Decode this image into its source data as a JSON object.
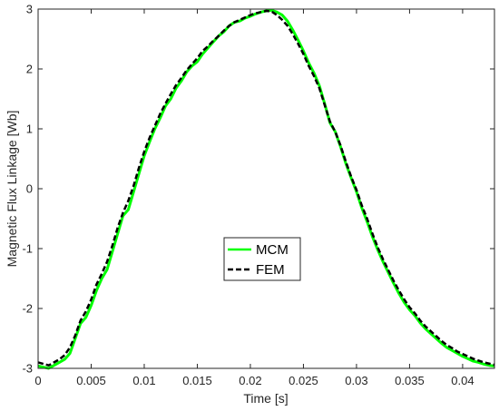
{
  "chart_data": {
    "type": "line",
    "title": "",
    "xlabel": "Time [s]",
    "ylabel": "Magnetic Flux Linkage [Wb]",
    "xlim": [
      0,
      0.043
    ],
    "ylim": [
      -3,
      3
    ],
    "x_ticks": [
      0,
      0.005,
      0.01,
      0.015,
      0.02,
      0.025,
      0.03,
      0.035,
      0.04
    ],
    "x_tick_labels": [
      "0",
      "0.005",
      "0.01",
      "0.015",
      "0.02",
      "0.025",
      "0.03",
      "0.035",
      "0.04"
    ],
    "y_ticks": [
      -3,
      -2,
      -1,
      0,
      1,
      2,
      3
    ],
    "y_tick_labels": [
      "-3",
      "-2",
      "-1",
      "0",
      "1",
      "2",
      "3"
    ],
    "grid": false,
    "legend_position": "center",
    "series": [
      {
        "name": "MCM",
        "color": "#00ff00",
        "style": "solid",
        "x": [
          0,
          0.001,
          0.0015,
          0.002,
          0.0025,
          0.003,
          0.0035,
          0.004,
          0.0045,
          0.005,
          0.0055,
          0.006,
          0.0065,
          0.007,
          0.0075,
          0.008,
          0.0085,
          0.009,
          0.0095,
          0.01,
          0.0105,
          0.011,
          0.0115,
          0.012,
          0.0125,
          0.013,
          0.0135,
          0.014,
          0.0145,
          0.015,
          0.0155,
          0.016,
          0.0165,
          0.017,
          0.0175,
          0.018,
          0.0185,
          0.019,
          0.0195,
          0.02,
          0.0205,
          0.021,
          0.0215,
          0.022,
          0.0225,
          0.023,
          0.0235,
          0.024,
          0.0245,
          0.025,
          0.0255,
          0.026,
          0.0265,
          0.027,
          0.0275,
          0.028,
          0.0285,
          0.029,
          0.0295,
          0.03,
          0.0305,
          0.031,
          0.0315,
          0.032,
          0.0325,
          0.033,
          0.0335,
          0.034,
          0.0345,
          0.035,
          0.0355,
          0.036,
          0.0365,
          0.037,
          0.0375,
          0.038,
          0.0385,
          0.039,
          0.0395,
          0.04,
          0.0405,
          0.041,
          0.0415,
          0.042,
          0.0425,
          0.043
        ],
        "y": [
          -2.96,
          -3.0,
          -2.95,
          -2.9,
          -2.85,
          -2.75,
          -2.5,
          -2.25,
          -2.15,
          -1.95,
          -1.7,
          -1.5,
          -1.35,
          -1.05,
          -0.75,
          -0.45,
          -0.35,
          -0.05,
          0.25,
          0.55,
          0.78,
          1.0,
          1.18,
          1.38,
          1.5,
          1.68,
          1.8,
          1.95,
          2.05,
          2.12,
          2.25,
          2.35,
          2.45,
          2.55,
          2.62,
          2.72,
          2.78,
          2.8,
          2.85,
          2.88,
          2.92,
          2.95,
          2.97,
          2.98,
          2.95,
          2.9,
          2.8,
          2.65,
          2.48,
          2.3,
          2.1,
          1.93,
          1.72,
          1.42,
          1.1,
          0.95,
          0.7,
          0.42,
          0.18,
          -0.05,
          -0.32,
          -0.55,
          -0.8,
          -1.02,
          -1.22,
          -1.4,
          -1.58,
          -1.75,
          -1.9,
          -2.02,
          -2.12,
          -2.24,
          -2.34,
          -2.42,
          -2.5,
          -2.58,
          -2.65,
          -2.7,
          -2.75,
          -2.8,
          -2.84,
          -2.88,
          -2.9,
          -2.93,
          -2.95,
          -2.96
        ]
      },
      {
        "name": "FEM",
        "color": "#000000",
        "style": "dashed",
        "x": [
          0,
          0.001,
          0.0015,
          0.002,
          0.0025,
          0.003,
          0.0035,
          0.004,
          0.0045,
          0.005,
          0.0055,
          0.006,
          0.0065,
          0.007,
          0.0075,
          0.008,
          0.0085,
          0.009,
          0.0095,
          0.01,
          0.0105,
          0.011,
          0.0115,
          0.012,
          0.0125,
          0.013,
          0.0135,
          0.014,
          0.0145,
          0.015,
          0.0155,
          0.016,
          0.0165,
          0.017,
          0.0175,
          0.018,
          0.0185,
          0.019,
          0.0195,
          0.02,
          0.0205,
          0.021,
          0.0215,
          0.022,
          0.0225,
          0.023,
          0.0235,
          0.024,
          0.0245,
          0.025,
          0.0255,
          0.026,
          0.0265,
          0.027,
          0.0275,
          0.028,
          0.0285,
          0.029,
          0.0295,
          0.03,
          0.0305,
          0.031,
          0.0315,
          0.032,
          0.0325,
          0.033,
          0.0335,
          0.034,
          0.0345,
          0.035,
          0.0355,
          0.036,
          0.0365,
          0.037,
          0.0375,
          0.038,
          0.0385,
          0.039,
          0.0395,
          0.04,
          0.0405,
          0.041,
          0.0415,
          0.042,
          0.0425,
          0.043
        ],
        "y": [
          -2.9,
          -2.95,
          -2.9,
          -2.85,
          -2.78,
          -2.65,
          -2.45,
          -2.2,
          -2.05,
          -1.85,
          -1.6,
          -1.42,
          -1.22,
          -0.95,
          -0.65,
          -0.4,
          -0.2,
          0.05,
          0.35,
          0.62,
          0.85,
          1.05,
          1.25,
          1.42,
          1.58,
          1.73,
          1.85,
          1.98,
          2.08,
          2.18,
          2.3,
          2.38,
          2.47,
          2.55,
          2.64,
          2.72,
          2.78,
          2.82,
          2.86,
          2.9,
          2.93,
          2.95,
          2.97,
          2.96,
          2.9,
          2.82,
          2.72,
          2.58,
          2.42,
          2.25,
          2.05,
          1.88,
          1.68,
          1.4,
          1.12,
          0.95,
          0.72,
          0.45,
          0.2,
          -0.02,
          -0.28,
          -0.5,
          -0.75,
          -0.98,
          -1.18,
          -1.36,
          -1.54,
          -1.7,
          -1.85,
          -1.98,
          -2.08,
          -2.2,
          -2.3,
          -2.38,
          -2.46,
          -2.54,
          -2.61,
          -2.66,
          -2.72,
          -2.76,
          -2.8,
          -2.84,
          -2.87,
          -2.9,
          -2.92,
          -2.94
        ]
      }
    ]
  }
}
